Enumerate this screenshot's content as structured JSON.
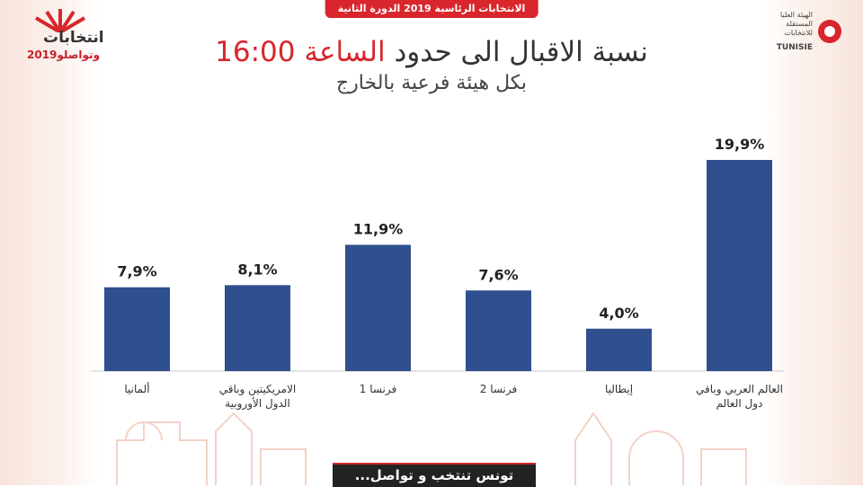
{
  "header": {
    "banner": "الانتخابات الرئاسية 2019 الدورة الثانية",
    "logo_left_line1": "انتخابات",
    "logo_left_line2": "وتواصلو2019",
    "logo_right_org": "الهيئة العليا المستقلة للانتخابات",
    "logo_right_abbr": "TUNISIE"
  },
  "title": {
    "part1": "نسبة الاقبال الى حدود",
    "accent": "الساعة",
    "time": "16:00",
    "subtitle": "بكل هيئة فرعية بالخارج"
  },
  "footer": {
    "slogan": "تونس تنتخب و تواصل..."
  },
  "colors": {
    "bar": "#2f4f8f",
    "accent": "#d8262c",
    "axis": "#c8c8c8"
  },
  "chart_data": {
    "type": "bar",
    "categories": [
      "ألمانيا",
      "الامريكيتين وباقي الدول الأوروبية",
      "فرنسا 1",
      "فرنسا 2",
      "إيطاليا",
      "العالم العربي وباقي دول العالم"
    ],
    "values": [
      7.9,
      8.1,
      11.9,
      7.6,
      4.0,
      19.9
    ],
    "data_labels": [
      "7,9%",
      "8,1%",
      "11,9%",
      "7,6%",
      "4,0%",
      "19,9%"
    ],
    "ylim": [
      0,
      20
    ],
    "grid": false,
    "legend": "none"
  }
}
